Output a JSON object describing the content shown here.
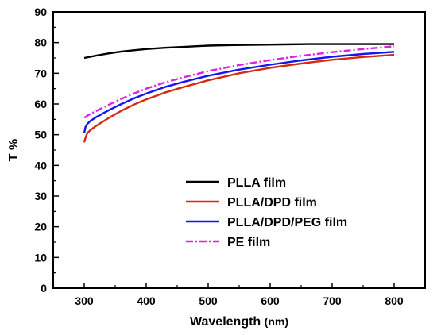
{
  "chart_data": {
    "type": "line",
    "xlabel": "Wavelength",
    "xlabel_unit": "(nm)",
    "ylabel": "T %",
    "xlim": [
      250,
      850
    ],
    "ylim": [
      0,
      90
    ],
    "xticks": [
      "300",
      "400",
      "500",
      "600",
      "700",
      "800"
    ],
    "yticks": [
      "0",
      "10",
      "20",
      "30",
      "40",
      "50",
      "60",
      "70",
      "80",
      "90"
    ],
    "grid": false,
    "legend_position": "center-left",
    "series": [
      {
        "name": "PLLA film",
        "color": "#000000",
        "dash": "solid",
        "x": [
          300,
          320,
          340,
          360,
          380,
          400,
          430,
          460,
          500,
          540,
          580,
          620,
          660,
          700,
          740,
          780,
          800
        ],
        "y": [
          75.0,
          75.8,
          76.5,
          77.1,
          77.5,
          77.9,
          78.3,
          78.6,
          79.0,
          79.2,
          79.3,
          79.4,
          79.5,
          79.5,
          79.5,
          79.5,
          79.5
        ]
      },
      {
        "name": "PLLA/DPD film",
        "color": "#d62b10",
        "dash": "solid",
        "x": [
          300,
          302,
          305,
          310,
          320,
          340,
          360,
          380,
          400,
          430,
          460,
          500,
          550,
          600,
          650,
          700,
          750,
          800
        ],
        "y": [
          47.5,
          49.0,
          50.5,
          51.5,
          53.0,
          55.5,
          57.8,
          59.8,
          61.5,
          63.7,
          65.5,
          67.7,
          70.0,
          71.8,
          73.2,
          74.4,
          75.3,
          76.0
        ]
      },
      {
        "name": "PLLA/DPD/PEG film",
        "color": "#1515f0",
        "dash": "solid",
        "x": [
          300,
          302,
          305,
          310,
          320,
          340,
          360,
          380,
          400,
          430,
          460,
          500,
          550,
          600,
          650,
          700,
          750,
          800
        ],
        "y": [
          50.5,
          52.5,
          53.5,
          54.5,
          55.8,
          58.0,
          60.0,
          61.8,
          63.4,
          65.5,
          67.2,
          69.2,
          71.2,
          72.8,
          74.2,
          75.4,
          76.3,
          77.0
        ]
      },
      {
        "name": "PE film",
        "color": "#e020e0",
        "dash": "dashdot",
        "x": [
          300,
          310,
          320,
          340,
          360,
          380,
          400,
          430,
          460,
          500,
          550,
          600,
          650,
          700,
          750,
          800
        ],
        "y": [
          55.5,
          56.8,
          57.8,
          59.8,
          61.7,
          63.4,
          65.0,
          67.0,
          68.7,
          70.7,
          72.7,
          74.3,
          75.7,
          76.9,
          77.9,
          78.8
        ]
      }
    ]
  }
}
